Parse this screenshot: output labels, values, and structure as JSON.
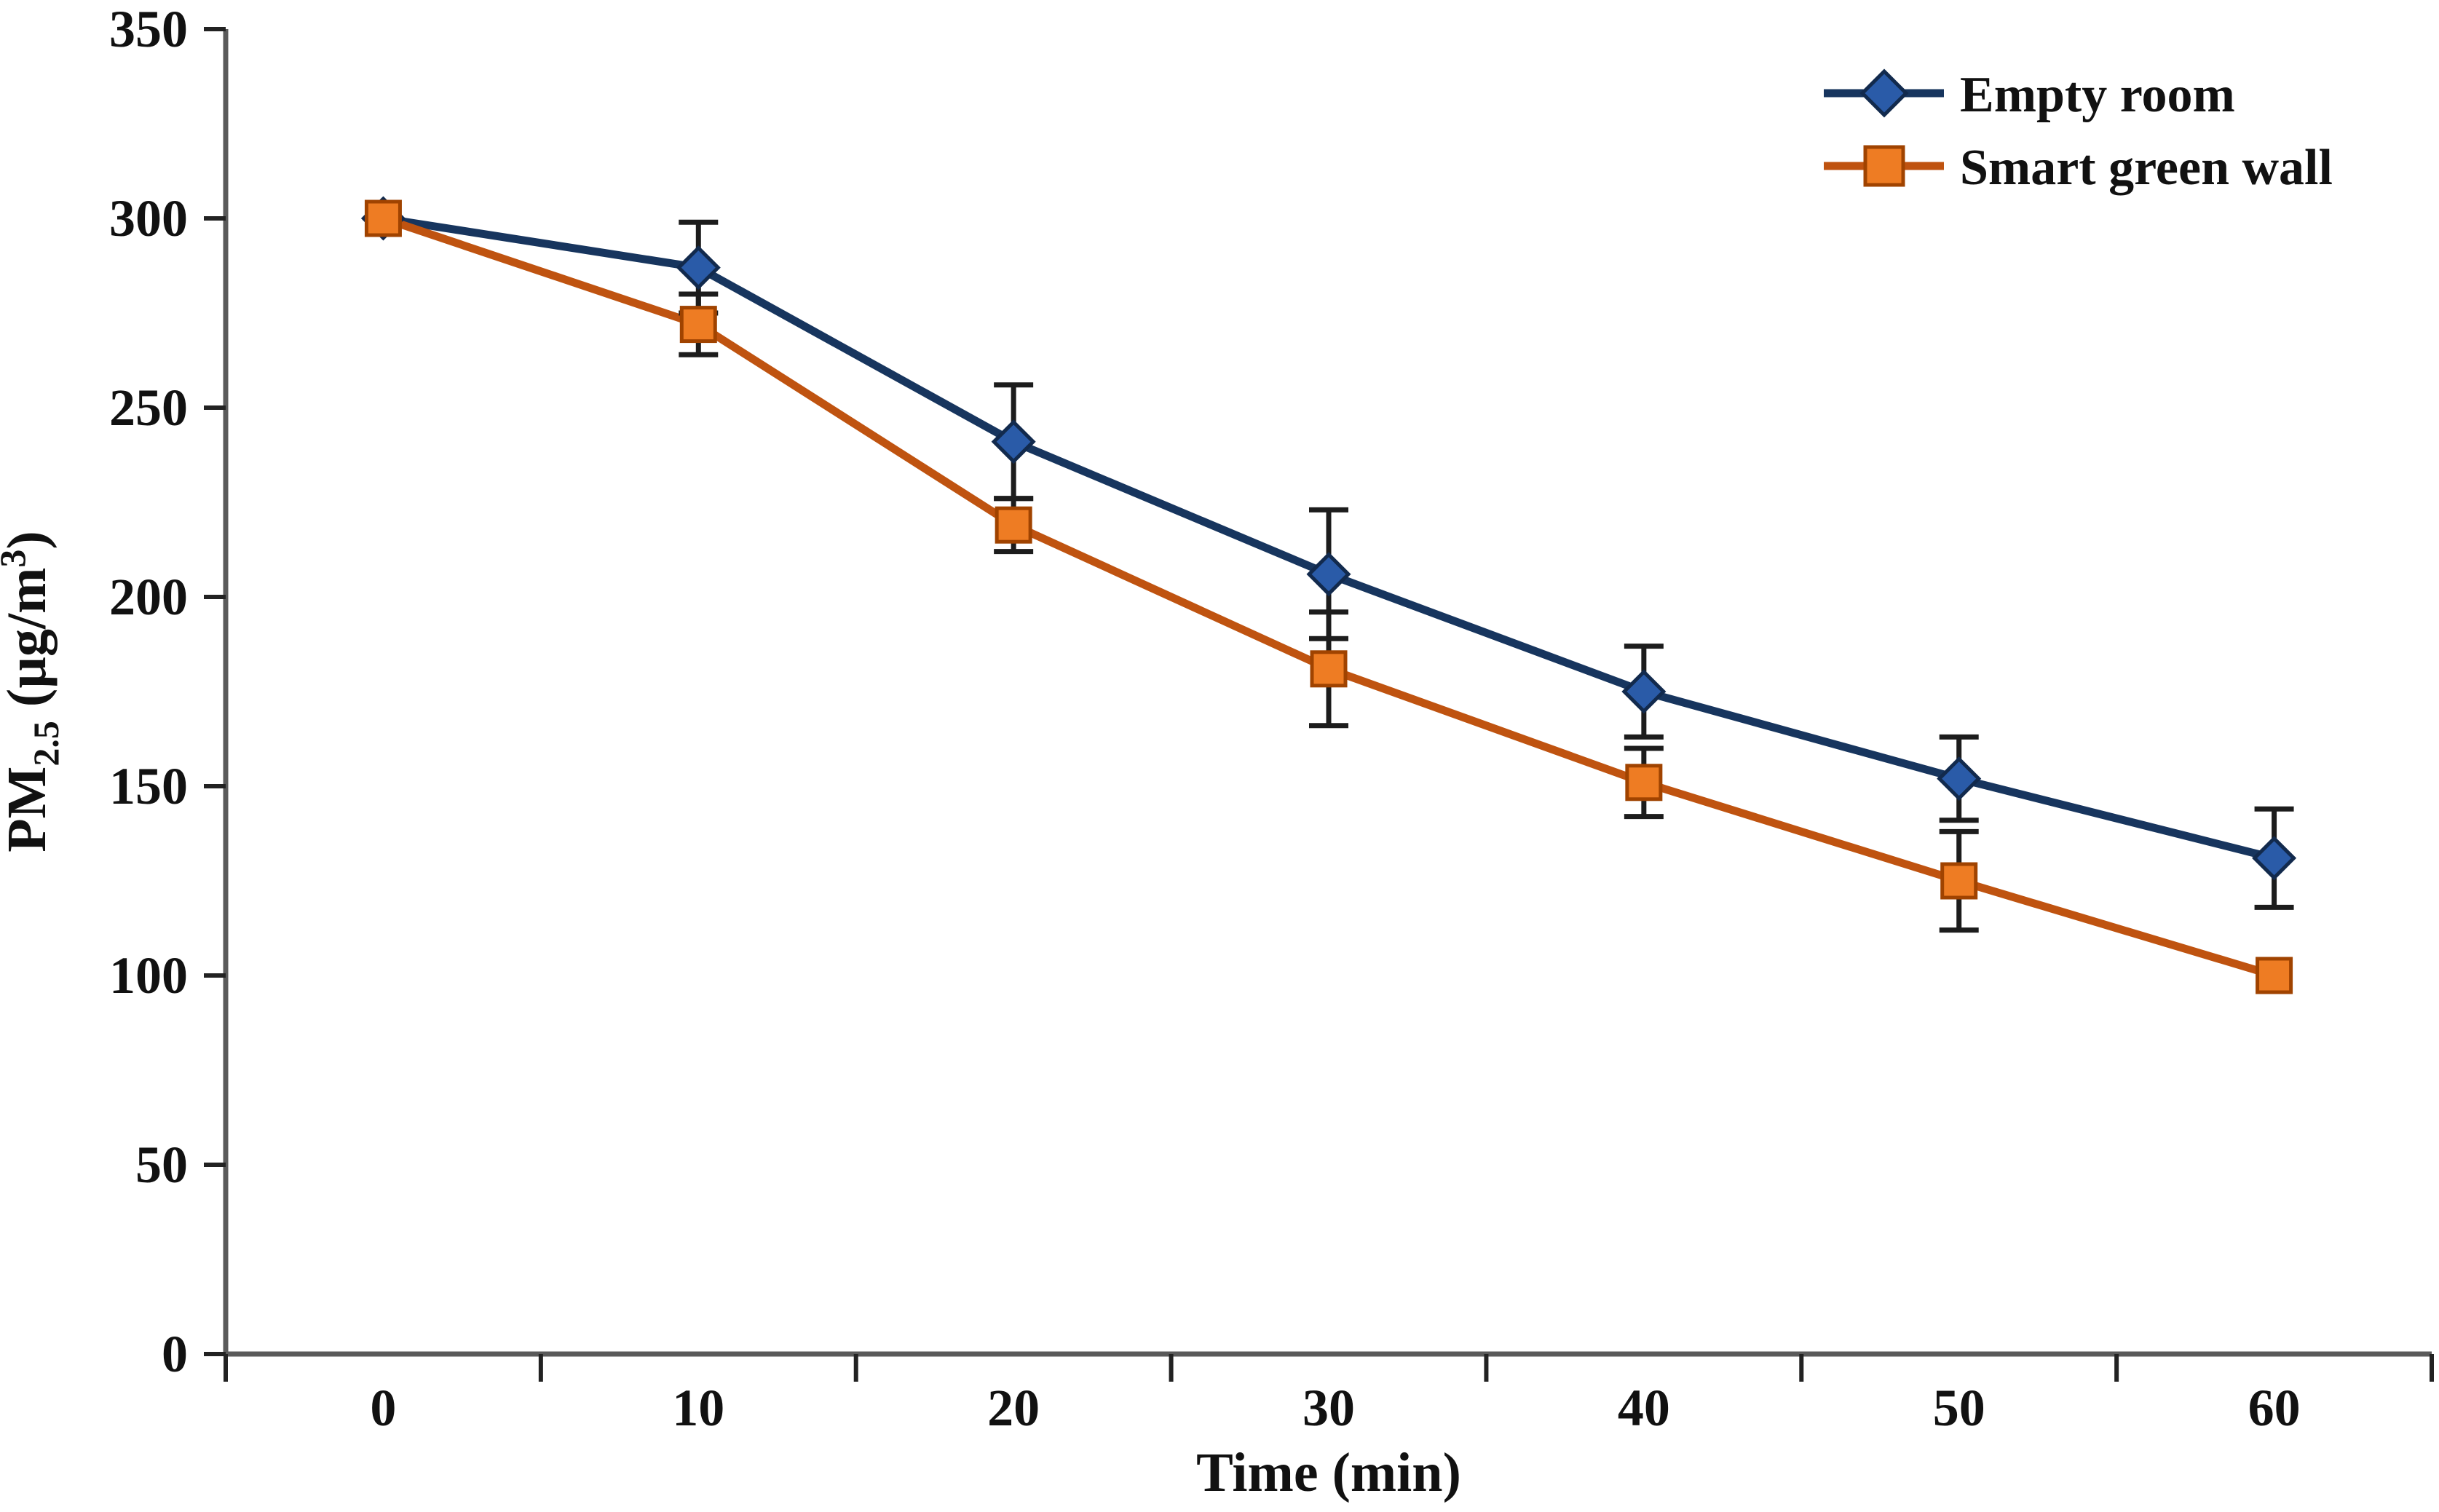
{
  "chart_data": {
    "type": "line",
    "x": [
      0,
      10,
      20,
      30,
      40,
      50,
      60
    ],
    "series": [
      {
        "name": "Empty room",
        "marker": "diamond",
        "line_color": "#17355e",
        "marker_fill": "#2a5ba8",
        "marker_stroke": "#122a4d",
        "values": [
          300,
          287,
          241,
          206,
          175,
          152,
          131
        ],
        "errors": [
          0,
          12,
          15,
          17,
          12,
          11,
          13
        ]
      },
      {
        "name": "Smart green wall",
        "marker": "square",
        "line_color": "#bf5310",
        "marker_fill": "#ee7c23",
        "marker_stroke": "#a04300",
        "values": [
          300,
          272,
          219,
          181,
          151,
          125,
          100
        ],
        "errors": [
          0,
          8,
          7,
          15,
          9,
          13,
          0
        ]
      }
    ],
    "title": "",
    "xlabel": "Time (min)",
    "ylabel": "PM2.5 (µg/m³)",
    "ylabel_parts": {
      "main": "PM",
      "sub": "2.5",
      "mid": " (µg/m",
      "sup": "3",
      "end": ")"
    },
    "xticks": [
      "0",
      "10",
      "20",
      "30",
      "40",
      "50",
      "60"
    ],
    "yticks": [
      0,
      50,
      100,
      150,
      200,
      250,
      300,
      350
    ],
    "ylim": [
      0,
      350
    ],
    "grid": false,
    "legend_position": "top-right",
    "axis_color": "#5a5a5a",
    "tick_color": "#222222",
    "error_bar_color": "#1c1c1c",
    "text_color": "#111111"
  }
}
